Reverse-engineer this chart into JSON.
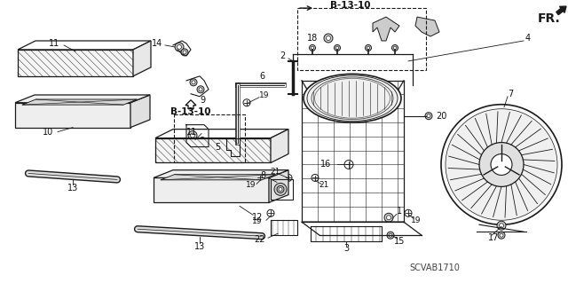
{
  "bg_color": "#ffffff",
  "lc": "#1a1a1a",
  "diagram_code": "SCVAB1710",
  "fr_label": "FR.",
  "ref_label": "B-13-10",
  "figsize": [
    6.4,
    3.19
  ],
  "dpi": 100
}
